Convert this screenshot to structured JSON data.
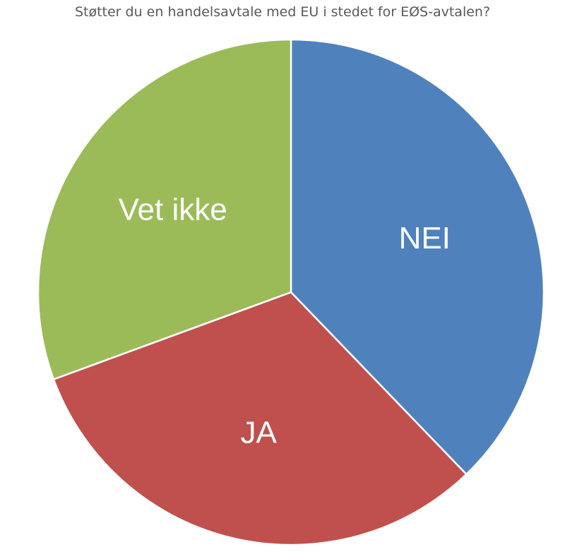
{
  "chart_data": {
    "type": "pie",
    "title": "Støtter du en handelsavtale med EU i stedet for EØS-avtalen?",
    "start_angle_deg": 0,
    "direction": "clockwise",
    "slices": [
      {
        "label": "NEI",
        "value": 37.8,
        "color": "#4f81bd"
      },
      {
        "label": "JA",
        "value": 31.6,
        "color": "#c0504d"
      },
      {
        "label": "Vet ikke",
        "value": 30.6,
        "color": "#9bbb59"
      }
    ],
    "legend": "none",
    "data_labels": "category-name-inside"
  }
}
